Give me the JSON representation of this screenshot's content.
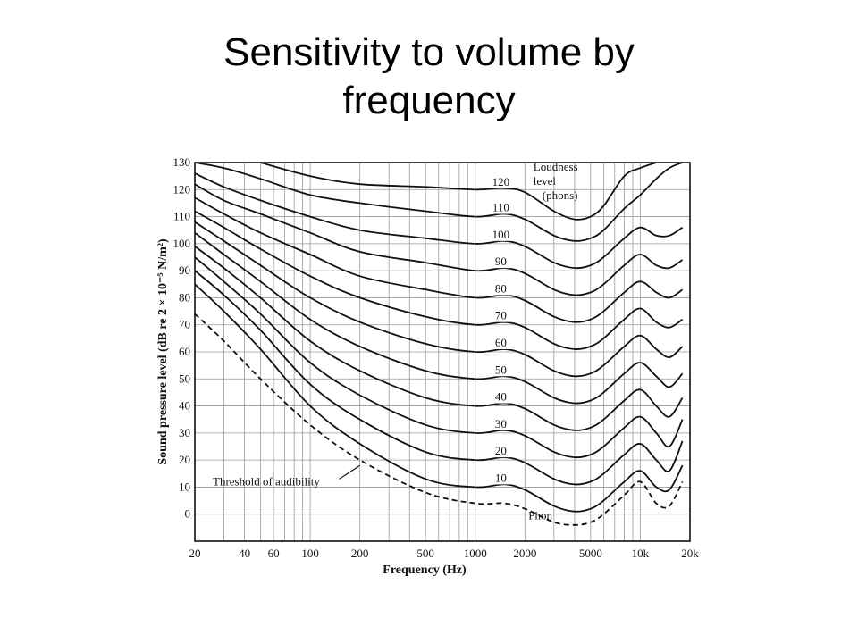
{
  "slide": {
    "title_line1": "Sensitivity to volume by",
    "title_line2": "frequency"
  },
  "chart_data": {
    "type": "line",
    "xlabel": "Frequency (Hz)",
    "ylabel": "Sound pressure level (dB re 2 × 10⁻⁵ N/m²)",
    "x_scale": "log",
    "xlim": [
      20,
      20000
    ],
    "ylim": [
      -10,
      130
    ],
    "x_ticks": [
      20,
      40,
      60,
      100,
      200,
      500,
      1000,
      2000,
      5000,
      10000,
      20000
    ],
    "x_tick_labels": [
      "20",
      "40",
      "60",
      "100",
      "200",
      "500",
      "1000",
      "2000",
      "5000",
      "10k",
      "20k"
    ],
    "y_ticks": [
      0,
      10,
      20,
      30,
      40,
      50,
      60,
      70,
      80,
      90,
      100,
      110,
      120,
      130
    ],
    "grid": true,
    "legend_title": [
      "Loudness",
      "level",
      "(phons)"
    ],
    "threshold_label": "Threshold of audibility",
    "phon_label": "Phon",
    "x": [
      20,
      30,
      50,
      100,
      200,
      500,
      1000,
      1500,
      2000,
      3000,
      4000,
      5000,
      6000,
      8000,
      10000,
      12500,
      15000,
      18000
    ],
    "series": [
      {
        "name": "120",
        "values": [
          null,
          null,
          130,
          125,
          122,
          121,
          120,
          120.5,
          119,
          112,
          109,
          110,
          114,
          125,
          128,
          130,
          null,
          null
        ]
      },
      {
        "name": "110",
        "values": [
          130,
          128,
          124,
          118,
          115,
          112,
          110,
          111,
          109,
          103,
          101,
          102,
          105,
          113,
          118,
          124,
          128,
          130
        ]
      },
      {
        "name": "100",
        "values": [
          126,
          121,
          116,
          110,
          105,
          102,
          100,
          101,
          99,
          93,
          91,
          92,
          95,
          102,
          106,
          103,
          103,
          106
        ]
      },
      {
        "name": "90",
        "values": [
          122,
          116,
          111,
          104,
          97,
          93,
          90,
          91,
          89,
          83,
          81,
          82,
          85,
          92,
          96,
          92,
          91,
          94
        ]
      },
      {
        "name": "80",
        "values": [
          117,
          111,
          104,
          96,
          88,
          83,
          80,
          81,
          79,
          73,
          71,
          72,
          75,
          82,
          86,
          82,
          80,
          83
        ]
      },
      {
        "name": "70",
        "values": [
          112,
          106,
          98,
          88,
          80,
          73,
          70,
          71,
          69,
          63,
          61,
          62,
          65,
          72,
          76,
          71,
          69,
          72
        ]
      },
      {
        "name": "60",
        "values": [
          108,
          101,
          92,
          80,
          71,
          63,
          60,
          61,
          59,
          53,
          51,
          52,
          55,
          62,
          66,
          61,
          58,
          62
        ]
      },
      {
        "name": "50",
        "values": [
          104,
          96,
          86,
          72,
          62,
          53,
          50,
          51,
          49,
          43,
          41,
          42,
          45,
          52,
          56,
          51,
          47,
          52
        ]
      },
      {
        "name": "40",
        "values": [
          99,
          91,
          80,
          64,
          53,
          43,
          40,
          41,
          39,
          33,
          31,
          32,
          35,
          42,
          46,
          40,
          36,
          43
        ]
      },
      {
        "name": "30",
        "values": [
          95,
          86,
          74,
          56,
          44,
          33,
          30,
          31,
          29,
          23,
          21,
          22,
          25,
          32,
          36,
          30,
          25,
          35
        ]
      },
      {
        "name": "20",
        "values": [
          90,
          81,
          68,
          48,
          35,
          23,
          20,
          21,
          19,
          13,
          11,
          12,
          15,
          22,
          26,
          20,
          16,
          27
        ]
      },
      {
        "name": "10",
        "values": [
          85,
          75,
          61,
          40,
          26,
          13,
          10,
          11,
          9,
          3,
          1,
          2,
          5,
          12,
          16,
          10,
          9,
          18
        ]
      },
      {
        "name": "Threshold of audibility",
        "dashed": true,
        "values": [
          74,
          64,
          50,
          33,
          20,
          8,
          4,
          4,
          2,
          -3,
          -4,
          -3,
          0,
          7,
          12,
          4,
          3,
          12
        ]
      }
    ]
  }
}
